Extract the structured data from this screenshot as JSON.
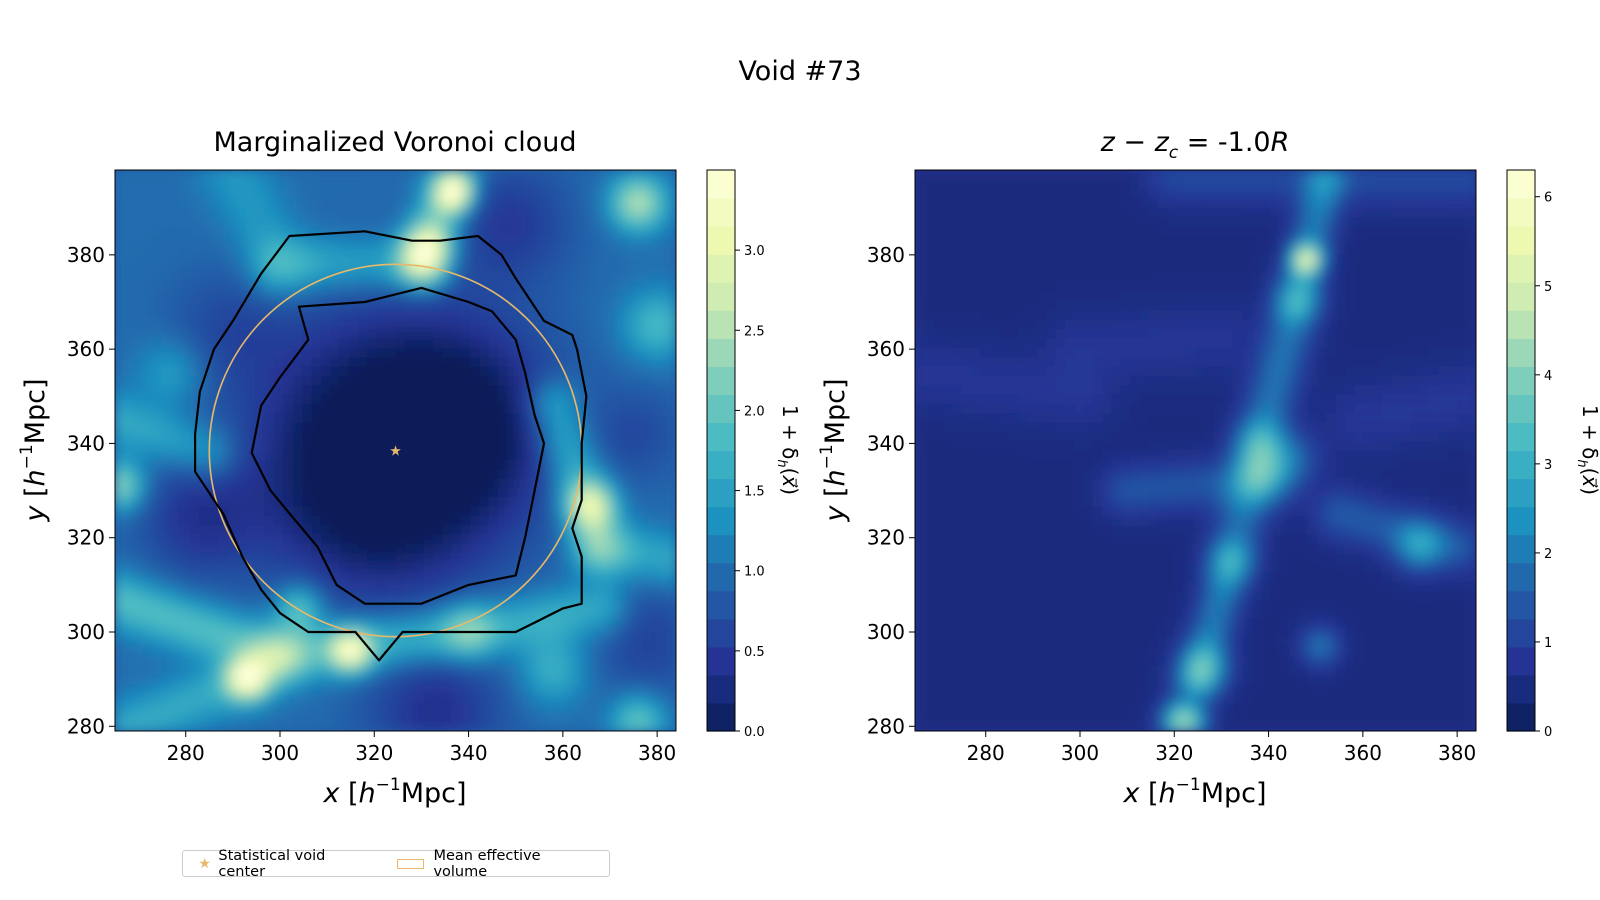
{
  "suptitle": "Void #73",
  "colormap": [
    "#081d58",
    "#253494",
    "#225ea8",
    "#1d91c0",
    "#41b6c4",
    "#7fcdbb",
    "#c7e9b4",
    "#edf8b1",
    "#ffffd9"
  ],
  "accent_color": "#e8b96a",
  "legend": {
    "placement": "bottom-left",
    "items": [
      {
        "label": "Statistical void center",
        "icon": "star-icon"
      },
      {
        "label": "Mean effective volume",
        "icon": "rectangle-outline-icon"
      }
    ]
  },
  "chart_data": [
    {
      "type": "heatmap",
      "title": "Marginalized Voronoi cloud",
      "xlabel": "x [h⁻¹Mpc]",
      "ylabel": "y [h⁻¹Mpc]",
      "xlim": [
        265,
        384
      ],
      "ylim": [
        279,
        398
      ],
      "xticks": [
        280,
        300,
        320,
        340,
        360,
        380
      ],
      "yticks": [
        280,
        300,
        320,
        340,
        360,
        380
      ],
      "colorbar": {
        "label": "1 + δh(x⃗)",
        "range": [
          0,
          3.5
        ],
        "ticks": [
          "0.0",
          "0.5",
          "1.0",
          "1.5",
          "2.0",
          "2.5",
          "3.0"
        ],
        "tick_values": [
          0,
          0.5,
          1.0,
          1.5,
          2.0,
          2.5,
          3.0
        ]
      },
      "void_center": {
        "x": 324.5,
        "y": 338.5
      },
      "mean_effective_volume": {
        "center_x": 324.5,
        "center_y": 338.5,
        "radius": 39.5
      },
      "features": {
        "void_depressions": [
          {
            "x": 324,
            "y": 340,
            "sigma": 19,
            "amp": -1.35
          },
          {
            "x": 340,
            "y": 345,
            "sigma": 13,
            "amp": -0.5
          },
          {
            "x": 318,
            "y": 327,
            "sigma": 13,
            "amp": -0.4
          },
          {
            "x": 283,
            "y": 324,
            "sigma": 9,
            "amp": -0.55
          },
          {
            "x": 349,
            "y": 387,
            "sigma": 9,
            "amp": -0.5
          },
          {
            "x": 333,
            "y": 283,
            "sigma": 10,
            "amp": -0.6
          },
          {
            "x": 378,
            "y": 298,
            "sigma": 9,
            "amp": -0.4
          },
          {
            "x": 376,
            "y": 342,
            "sigma": 7,
            "amp": -0.3
          },
          {
            "x": 289,
            "y": 364,
            "sigma": 9,
            "amp": -0.3
          }
        ],
        "peaks": [
          {
            "x": 337,
            "y": 393,
            "sigma": 2.6,
            "amp": 2.0
          },
          {
            "x": 331,
            "y": 381,
            "sigma": 3.5,
            "amp": 1.4
          },
          {
            "x": 366,
            "y": 327,
            "sigma": 3.5,
            "amp": 1.5
          },
          {
            "x": 266,
            "y": 331,
            "sigma": 3.5,
            "amp": 1.3
          },
          {
            "x": 293,
            "y": 290,
            "sigma": 3.0,
            "amp": 2.0
          },
          {
            "x": 315,
            "y": 296,
            "sigma": 3.0,
            "amp": 1.8
          },
          {
            "x": 304,
            "y": 305,
            "sigma": 3.5,
            "amp": 1.0
          },
          {
            "x": 376,
            "y": 391,
            "sigma": 4.0,
            "amp": 1.5
          },
          {
            "x": 376,
            "y": 281,
            "sigma": 4.0,
            "amp": 1.0
          },
          {
            "x": 358,
            "y": 292,
            "sigma": 5.0,
            "amp": 0.7
          },
          {
            "x": 380,
            "y": 365,
            "sigma": 5.0,
            "amp": 0.8
          },
          {
            "x": 277,
            "y": 355,
            "sigma": 5.0,
            "amp": 0.5
          }
        ],
        "filaments": [
          {
            "x1": 337,
            "y1": 398,
            "x2": 330,
            "y2": 378,
            "w": 3.5,
            "amp": 1.1
          },
          {
            "x1": 330,
            "y1": 378,
            "x2": 300,
            "y2": 378,
            "w": 4.0,
            "amp": 0.6
          },
          {
            "x1": 265,
            "y1": 307,
            "x2": 300,
            "y2": 295,
            "w": 4.0,
            "amp": 0.9
          },
          {
            "x1": 300,
            "y1": 295,
            "x2": 340,
            "y2": 300,
            "w": 4.0,
            "amp": 0.9
          },
          {
            "x1": 340,
            "y1": 300,
            "x2": 368,
            "y2": 305,
            "w": 4.0,
            "amp": 0.7
          },
          {
            "x1": 358,
            "y1": 348,
            "x2": 368,
            "y2": 318,
            "w": 4.0,
            "amp": 0.8
          },
          {
            "x1": 368,
            "y1": 318,
            "x2": 384,
            "y2": 315,
            "w": 4.0,
            "amp": 0.6
          },
          {
            "x1": 265,
            "y1": 345,
            "x2": 285,
            "y2": 338,
            "w": 4.0,
            "amp": 0.6
          },
          {
            "x1": 290,
            "y1": 398,
            "x2": 300,
            "y2": 378,
            "w": 5.0,
            "amp": 0.4
          },
          {
            "x1": 268,
            "y1": 280,
            "x2": 293,
            "y2": 290,
            "w": 4.0,
            "amp": 0.6
          }
        ]
      },
      "contours": {
        "outer": [
          [
            302,
            384
          ],
          [
            318,
            385
          ],
          [
            328,
            383
          ],
          [
            334,
            383
          ],
          [
            342,
            384
          ],
          [
            347,
            380
          ],
          [
            350,
            375
          ],
          [
            356,
            366
          ],
          [
            362,
            363
          ],
          [
            363,
            360
          ],
          [
            365,
            350
          ],
          [
            364,
            340
          ],
          [
            364,
            328
          ],
          [
            362,
            322
          ],
          [
            364,
            316
          ],
          [
            364,
            306
          ],
          [
            360,
            305
          ],
          [
            354,
            302
          ],
          [
            350,
            300
          ],
          [
            340,
            300
          ],
          [
            330,
            300
          ],
          [
            326,
            300
          ],
          [
            321,
            294
          ],
          [
            316,
            300
          ],
          [
            306,
            300
          ],
          [
            300,
            304
          ],
          [
            296,
            309
          ],
          [
            292,
            316
          ],
          [
            288,
            325
          ],
          [
            282,
            334
          ],
          [
            282,
            342
          ],
          [
            283,
            351
          ],
          [
            286,
            360
          ],
          [
            290,
            366
          ],
          [
            296,
            376
          ],
          [
            302,
            384
          ]
        ],
        "inner": [
          [
            304,
            369
          ],
          [
            318,
            370
          ],
          [
            330,
            373
          ],
          [
            340,
            370
          ],
          [
            345,
            368
          ],
          [
            350,
            362
          ],
          [
            352,
            355
          ],
          [
            354,
            346
          ],
          [
            356,
            340
          ],
          [
            354,
            330
          ],
          [
            352,
            320
          ],
          [
            350,
            312
          ],
          [
            340,
            310
          ],
          [
            330,
            306
          ],
          [
            318,
            306
          ],
          [
            312,
            310
          ],
          [
            308,
            318
          ],
          [
            303,
            324
          ],
          [
            298,
            330
          ],
          [
            294,
            338
          ],
          [
            296,
            348
          ],
          [
            300,
            354
          ],
          [
            306,
            362
          ],
          [
            304,
            369
          ]
        ]
      }
    },
    {
      "type": "heatmap",
      "title": "z − zc = -1.0R",
      "xlabel": "x [h⁻¹Mpc]",
      "ylabel": "y [h⁻¹Mpc]",
      "xlim": [
        265,
        384
      ],
      "ylim": [
        279,
        398
      ],
      "xticks": [
        280,
        300,
        320,
        340,
        360,
        380
      ],
      "yticks": [
        280,
        300,
        320,
        340,
        360,
        380
      ],
      "colorbar": {
        "label": "1 + δh(x⃗)",
        "range": [
          0,
          6.3
        ],
        "ticks": [
          "0",
          "1",
          "2",
          "3",
          "4",
          "5",
          "6"
        ],
        "tick_values": [
          0,
          1,
          2,
          3,
          4,
          5,
          6
        ]
      },
      "features": {
        "background": 0.5,
        "peaks": [
          {
            "x": 348,
            "y": 379,
            "sigma": 2.2,
            "amp": 3.6
          },
          {
            "x": 322,
            "y": 281,
            "sigma": 3.0,
            "amp": 3.8
          },
          {
            "x": 326,
            "y": 292,
            "sigma": 3.5,
            "amp": 2.0
          },
          {
            "x": 372,
            "y": 318,
            "sigma": 3.5,
            "amp": 1.6
          },
          {
            "x": 351,
            "y": 297,
            "sigma": 2.8,
            "amp": 1.4
          },
          {
            "x": 345,
            "y": 337,
            "sigma": 4.0,
            "amp": 1.0
          },
          {
            "x": 340,
            "y": 333,
            "sigma": 4.0,
            "amp": 1.5
          }
        ],
        "filaments": [
          {
            "x1": 352,
            "y1": 396,
            "x2": 346,
            "y2": 370,
            "w": 3.0,
            "amp": 1.5
          },
          {
            "x1": 346,
            "y1": 370,
            "x2": 338,
            "y2": 340,
            "w": 3.5,
            "amp": 1.4
          },
          {
            "x1": 338,
            "y1": 340,
            "x2": 332,
            "y2": 315,
            "w": 3.5,
            "amp": 1.3
          },
          {
            "x1": 332,
            "y1": 315,
            "x2": 325,
            "y2": 290,
            "w": 3.0,
            "amp": 1.5
          },
          {
            "x1": 310,
            "y1": 330,
            "x2": 336,
            "y2": 332,
            "w": 3.5,
            "amp": 0.9
          },
          {
            "x1": 355,
            "y1": 325,
            "x2": 380,
            "y2": 318,
            "w": 3.5,
            "amp": 1.0
          },
          {
            "x1": 320,
            "y1": 397,
            "x2": 384,
            "y2": 396,
            "w": 4.0,
            "amp": 0.7
          },
          {
            "x1": 265,
            "y1": 355,
            "x2": 300,
            "y2": 350,
            "w": 5.0,
            "amp": 0.3
          },
          {
            "x1": 300,
            "y1": 360,
            "x2": 330,
            "y2": 362,
            "w": 5.0,
            "amp": 0.3
          },
          {
            "x1": 360,
            "y1": 345,
            "x2": 384,
            "y2": 350,
            "w": 5.0,
            "amp": 0.35
          }
        ]
      }
    }
  ]
}
